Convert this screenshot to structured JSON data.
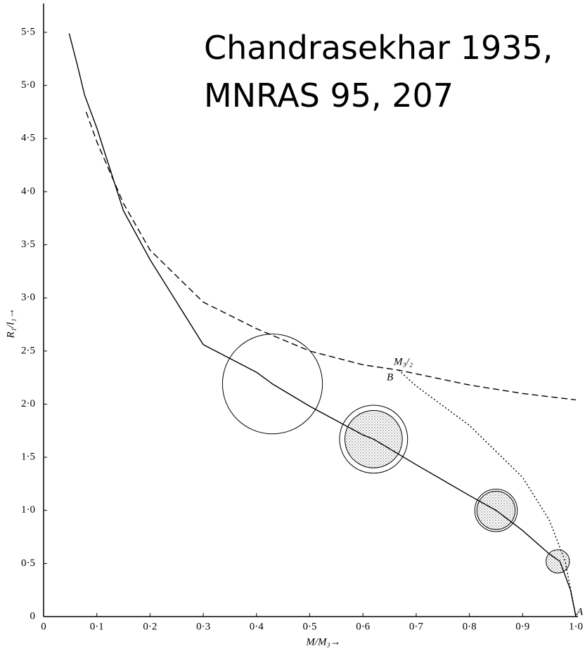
{
  "chart_data": {
    "type": "line",
    "annotations": [
      "Chandrasekhar 1935,",
      "MNRAS 95, 207",
      "M₃/₂",
      "B",
      "A"
    ],
    "xlabel": "M/M₃→",
    "ylabel": "R₁/l₁→",
    "xlim": [
      0,
      1
    ],
    "ylim": [
      0,
      5.5
    ],
    "xticks": [
      0,
      {
        "value": 0.1,
        "label": "0·1"
      },
      {
        "value": 0.2,
        "label": "0·2"
      },
      {
        "value": 0.3,
        "label": "0·3"
      },
      {
        "value": 0.4,
        "label": "0·4"
      },
      {
        "value": 0.5,
        "label": "0·5"
      },
      {
        "value": 0.6,
        "label": "0·6"
      },
      {
        "value": 0.7,
        "label": "0·7"
      },
      {
        "value": 0.8,
        "label": "0·8"
      },
      {
        "value": 0.9,
        "label": "0·9"
      },
      {
        "value": 1,
        "label": "1·0"
      }
    ],
    "yticks": [
      0,
      {
        "value": 0.5,
        "label": "0·5"
      },
      {
        "value": 1,
        "label": "1·0"
      },
      {
        "value": 1.5,
        "label": "1·5"
      },
      {
        "value": 2,
        "label": "2·0"
      },
      {
        "value": 2.5,
        "label": "2·5"
      },
      {
        "value": 3,
        "label": "3·0"
      },
      {
        "value": 3.5,
        "label": "3·5"
      },
      {
        "value": 4,
        "label": "4·0"
      },
      {
        "value": 4.5,
        "label": "4·5"
      },
      {
        "value": 5,
        "label": "5·0"
      },
      {
        "value": 5.5,
        "label": "5·5"
      }
    ],
    "series": [
      {
        "style": "solid",
        "color": "#000000",
        "x": [
          0.048,
          0.063,
          0.077,
          0.1,
          0.15,
          0.2,
          0.3,
          0.4,
          0.43,
          0.5,
          0.6,
          0.62,
          0.7,
          0.8,
          0.85,
          0.9,
          0.95,
          0.97,
          0.99,
          1.0
        ],
        "values": [
          5.49,
          5.2,
          4.91,
          4.6,
          3.82,
          3.36,
          2.56,
          2.3,
          2.19,
          1.98,
          1.71,
          1.67,
          1.43,
          1.14,
          1.0,
          0.81,
          0.59,
          0.52,
          0.25,
          0
        ]
      },
      {
        "style": "dashed",
        "color": "#000000",
        "x": [
          0.08,
          0.1,
          0.15,
          0.2,
          0.3,
          0.4,
          0.5,
          0.6,
          0.667,
          0.8,
          0.9,
          1.0
        ],
        "values": [
          4.75,
          4.47,
          3.89,
          3.45,
          2.96,
          2.71,
          2.5,
          2.37,
          2.32,
          2.18,
          2.1,
          2.04
        ]
      },
      {
        "style": "dotted",
        "color": "#000000",
        "x": [
          0.667,
          0.7,
          0.8,
          0.9,
          0.95,
          0.98,
          1.0
        ],
        "values": [
          2.32,
          2.17,
          1.8,
          1.31,
          0.91,
          0.52,
          0
        ]
      }
    ],
    "circles": [
      {
        "x": 0.43,
        "y": 2.19,
        "r": 0.47,
        "stippled": false
      },
      {
        "x": 0.62,
        "y": 1.67,
        "r": 0.32,
        "inner_r": 0.27,
        "stippled": true
      },
      {
        "x": 0.85,
        "y": 1.0,
        "r": 0.2,
        "inner_r": 0.18,
        "stippled": true
      },
      {
        "x": 0.966,
        "y": 0.52,
        "r": 0.11,
        "stippled": true
      }
    ]
  }
}
